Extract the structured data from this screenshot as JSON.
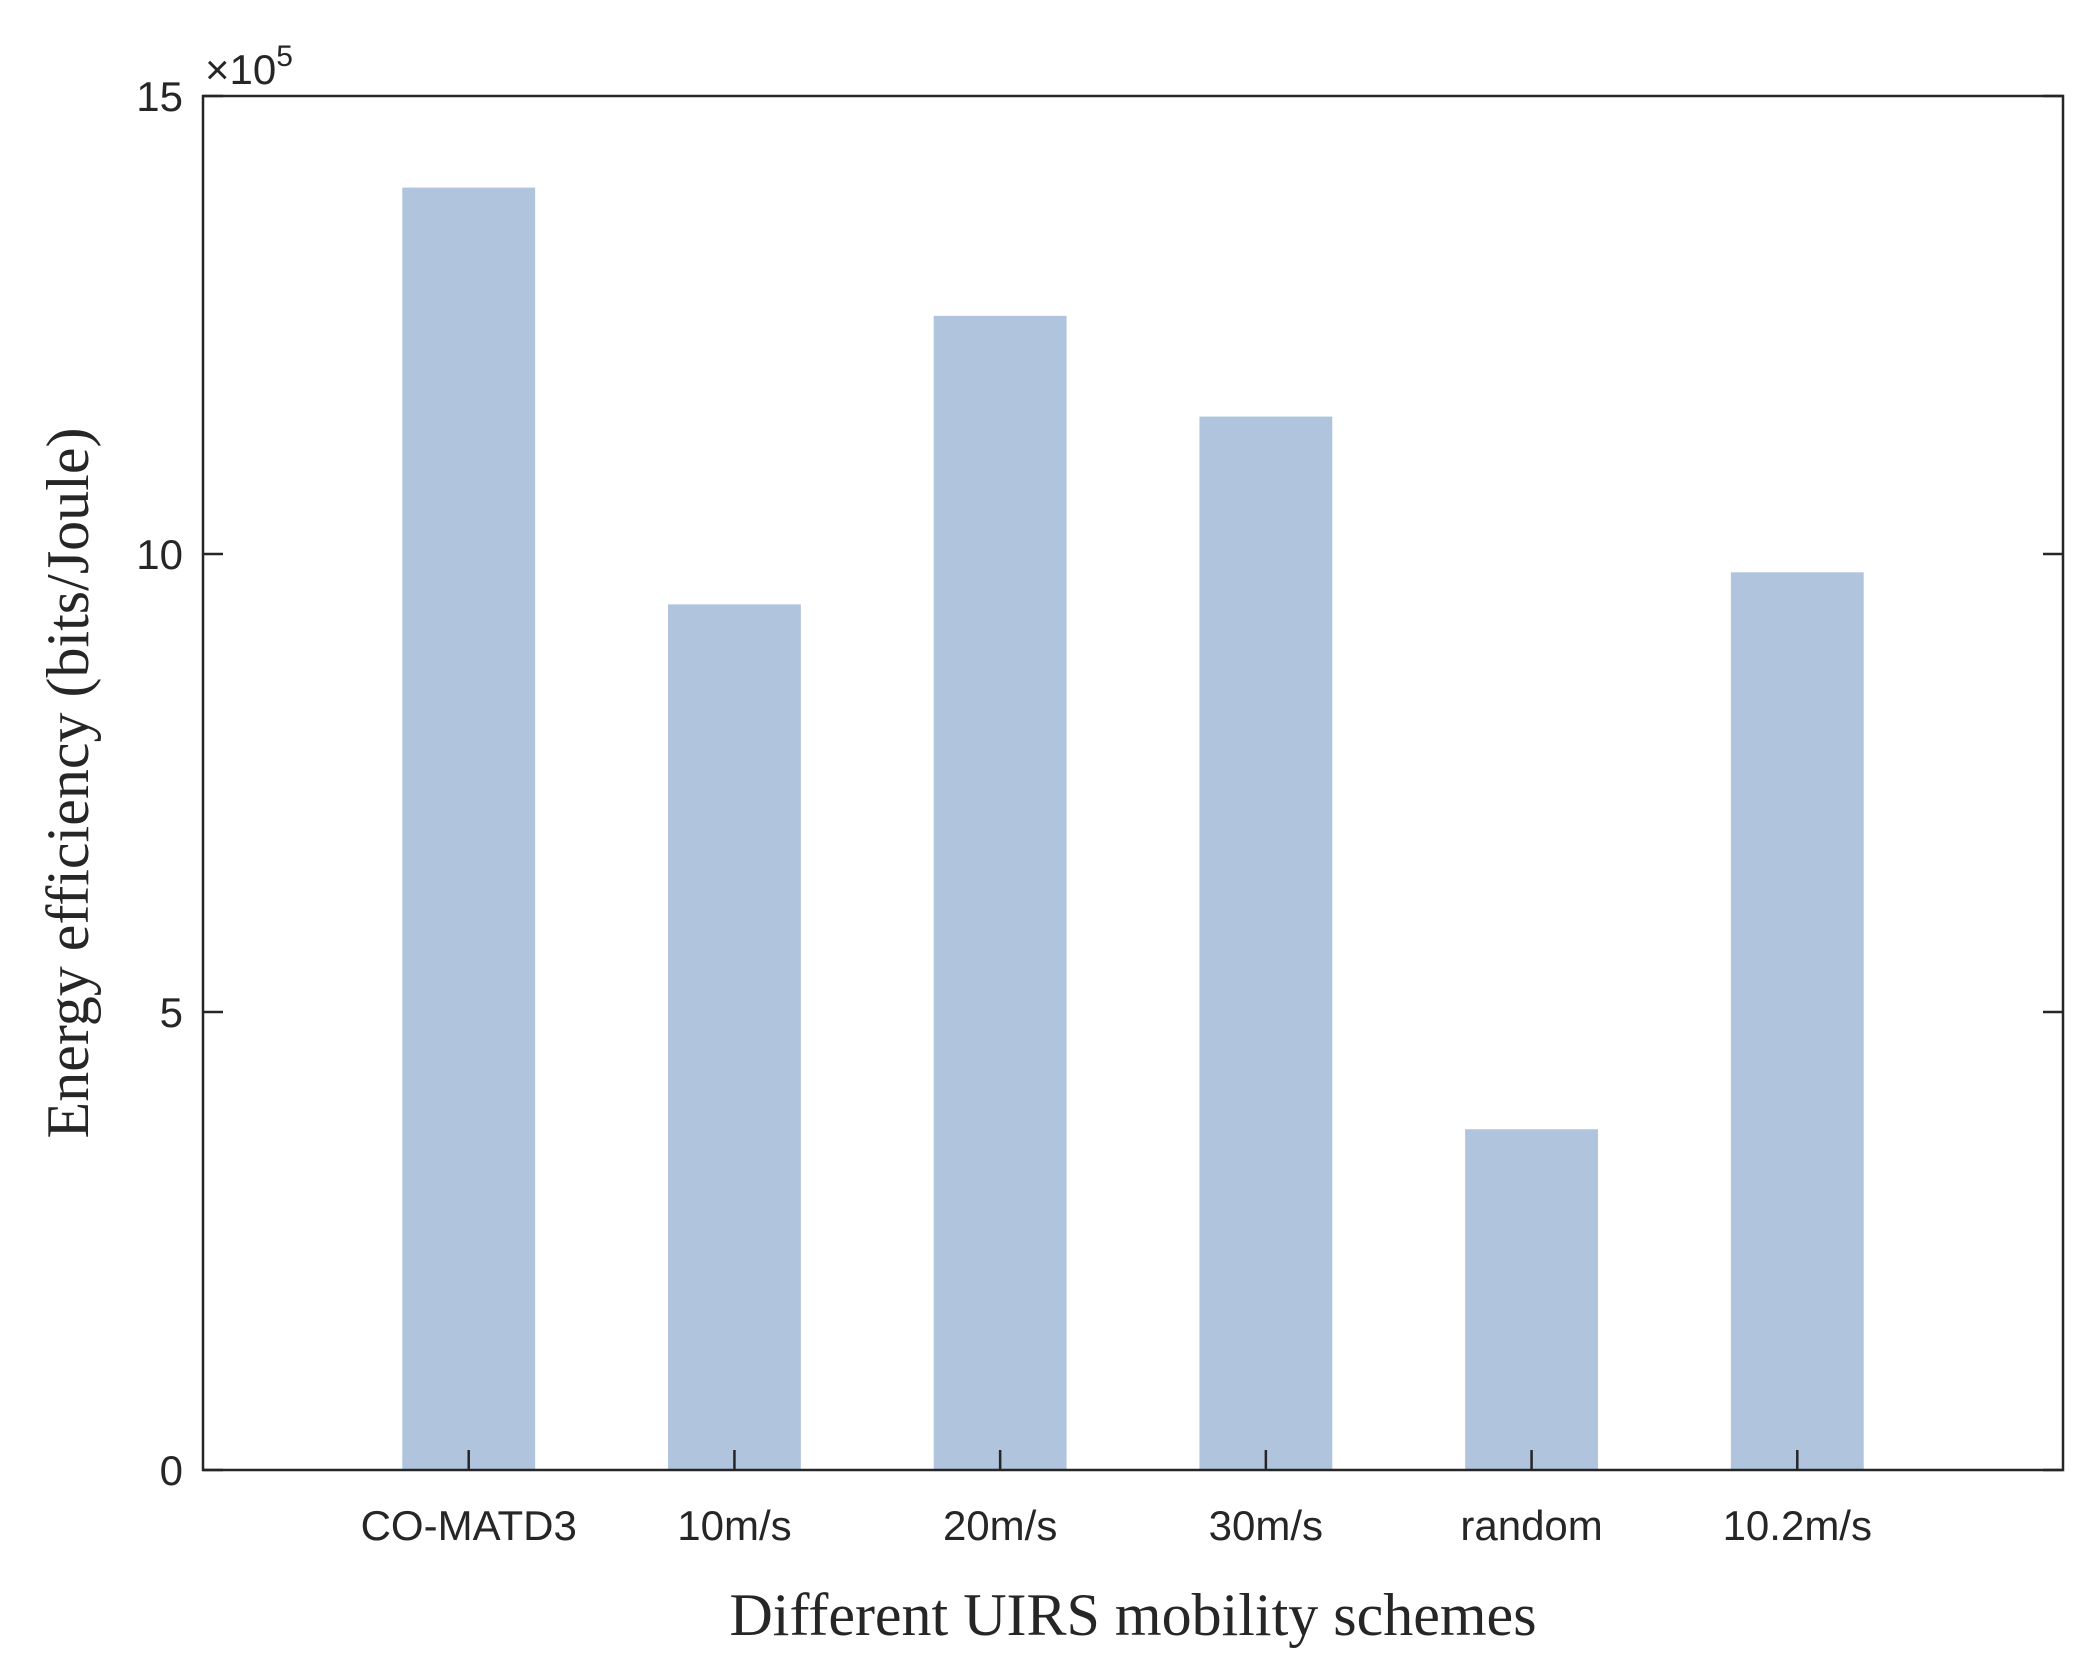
{
  "chart_data": {
    "type": "bar",
    "title": "",
    "xlabel": "Different UIRS mobility schemes",
    "ylabel": "Energy efficiency (bits/Joule)",
    "categories": [
      "CO-MATD3",
      "10m/s",
      "20m/s",
      "30m/s",
      "random",
      "10.2m/s"
    ],
    "values": [
      14.0,
      9.45,
      12.6,
      11.5,
      3.72,
      9.8
    ],
    "value_multiplier_label": {
      "base": "×10",
      "exponent": "5"
    },
    "ylim": [
      0,
      15
    ],
    "yticks": [
      0,
      5,
      10,
      15
    ],
    "xlim": [
      0,
      7
    ],
    "grid": false,
    "legend": "none",
    "colors": {
      "bar": "#b0c4de",
      "axis": "#262626",
      "background": "#ffffff"
    }
  }
}
